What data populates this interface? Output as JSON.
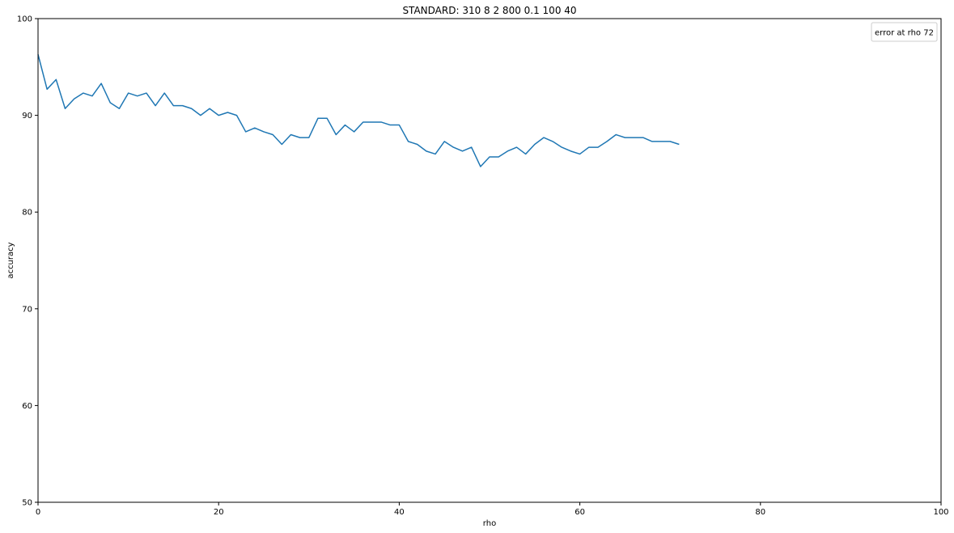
{
  "chart_data": {
    "type": "line",
    "title": "STANDARD: 310 8 2 800 0.1 100 40",
    "xlabel": "rho",
    "ylabel": "accuracy",
    "xlim": [
      0,
      100
    ],
    "ylim": [
      50,
      100
    ],
    "xticks": [
      0,
      20,
      40,
      60,
      80,
      100
    ],
    "yticks": [
      50,
      60,
      70,
      80,
      90,
      100
    ],
    "grid": false,
    "legend": {
      "placement": "top-right",
      "entries": [
        "error at rho 72"
      ]
    },
    "series": [
      {
        "name": "",
        "color": "#1f77b4",
        "x": [
          0,
          1,
          2,
          3,
          4,
          5,
          6,
          7,
          8,
          9,
          10,
          11,
          12,
          13,
          14,
          15,
          16,
          17,
          18,
          19,
          20,
          21,
          22,
          23,
          24,
          25,
          26,
          27,
          28,
          29,
          30,
          31,
          32,
          33,
          34,
          35,
          36,
          37,
          38,
          39,
          40,
          41,
          42,
          43,
          44,
          45,
          46,
          47,
          48,
          49,
          50,
          51,
          52,
          53,
          54,
          55,
          56,
          57,
          58,
          59,
          60,
          61,
          62,
          63,
          64,
          65,
          66,
          67,
          68,
          69,
          70,
          71
        ],
        "y": [
          96.3,
          92.7,
          93.7,
          90.7,
          91.7,
          92.3,
          92.0,
          93.3,
          91.3,
          90.7,
          92.3,
          92.0,
          92.3,
          91.0,
          92.3,
          91.0,
          91.0,
          90.7,
          90.0,
          90.7,
          90.0,
          90.3,
          90.0,
          88.3,
          88.7,
          88.3,
          88.0,
          87.0,
          88.0,
          87.7,
          87.7,
          89.7,
          89.7,
          88.0,
          89.0,
          88.3,
          89.3,
          89.3,
          89.3,
          89.0,
          89.0,
          87.3,
          87.0,
          86.3,
          86.0,
          87.3,
          86.7,
          86.3,
          86.7,
          84.7,
          85.7,
          85.7,
          86.3,
          86.7,
          86.0,
          87.0,
          87.7,
          87.3,
          86.7,
          86.3,
          86.0,
          86.7,
          86.7,
          87.3,
          88.0,
          87.7,
          87.7,
          87.7,
          87.3,
          87.3,
          87.3,
          87.0
        ]
      }
    ]
  }
}
